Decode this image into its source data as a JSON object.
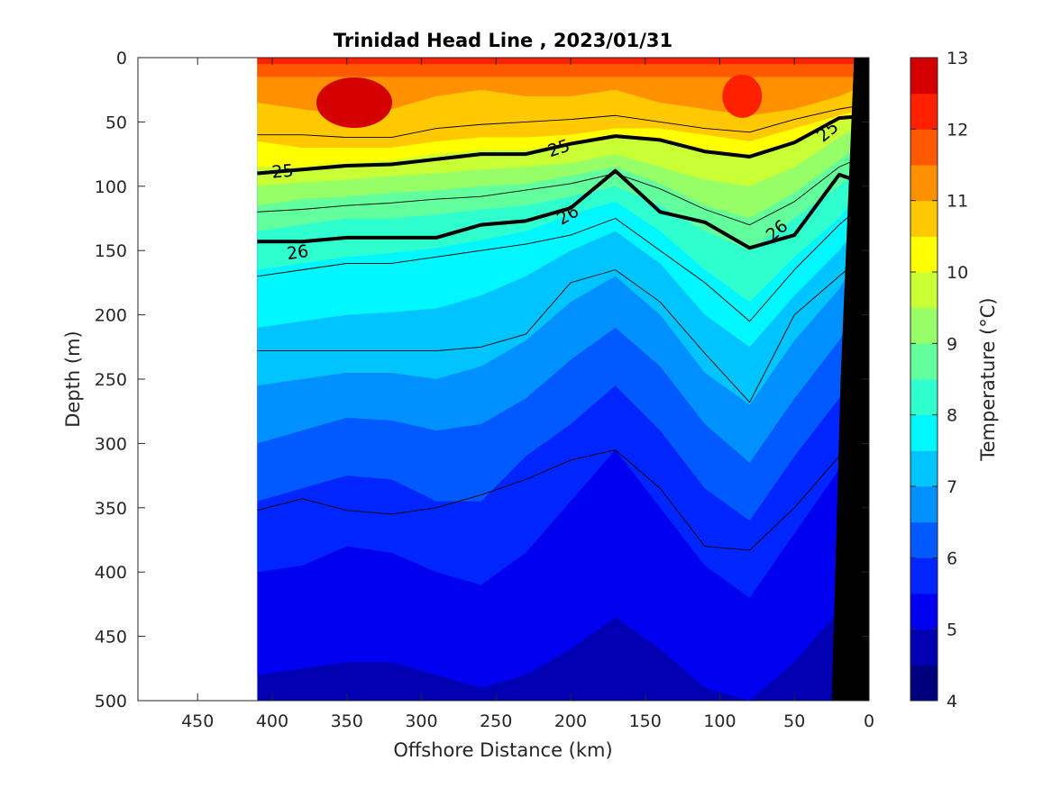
{
  "chart_data": {
    "type": "heatmap",
    "subtype": "filled-contour section",
    "title": "Trinidad Head Line , 2023/01/31",
    "xlabel": "Offshore Distance (km)",
    "ylabel": "Depth (m)",
    "xlim": [
      490,
      0
    ],
    "ylim": [
      500,
      0
    ],
    "x_reversed": true,
    "y_reversed": true,
    "x_ticks": [
      450,
      400,
      350,
      300,
      250,
      200,
      150,
      100,
      50,
      0
    ],
    "y_ticks": [
      0,
      50,
      100,
      150,
      200,
      250,
      300,
      350,
      400,
      450,
      500
    ],
    "data_extent_km": [
      410,
      0
    ],
    "colorbar": {
      "label": "Temperature (°C)",
      "range": [
        4,
        13
      ],
      "ticks": [
        4,
        5,
        6,
        7,
        8,
        9,
        10,
        11,
        12,
        13
      ],
      "levels": [
        4,
        4.5,
        5,
        5.5,
        6,
        6.5,
        7,
        7.5,
        8,
        8.5,
        9,
        9.5,
        10,
        10.5,
        11,
        11.5,
        12,
        12.5,
        13
      ],
      "colors": [
        "#00007f",
        "#0000b2",
        "#0000f0",
        "#0025ff",
        "#005aff",
        "#0090ff",
        "#00c4ff",
        "#00f7ff",
        "#2fffcf",
        "#62ff9c",
        "#96ff68",
        "#c9ff35",
        "#ffff00",
        "#ffc800",
        "#ff9000",
        "#ff5900",
        "#ff2000",
        "#d40000",
        "#9a0000"
      ]
    },
    "isotherm_depths_m": {
      "x_km": [
        410,
        380,
        350,
        320,
        290,
        260,
        230,
        200,
        170,
        140,
        110,
        80,
        50,
        20,
        10
      ],
      "t_12": [
        5,
        5,
        5,
        5,
        5,
        5,
        5,
        5,
        5,
        5,
        5,
        5,
        5,
        5,
        5
      ],
      "t_11_5": [
        15,
        15,
        15,
        15,
        15,
        15,
        15,
        15,
        15,
        15,
        15,
        15,
        15,
        15,
        15
      ],
      "t_11": [
        35,
        40,
        45,
        40,
        30,
        25,
        30,
        30,
        25,
        35,
        40,
        45,
        40,
        30,
        25
      ],
      "t_10_5": [
        65,
        70,
        70,
        70,
        65,
        62,
        62,
        60,
        55,
        55,
        60,
        65,
        55,
        45,
        42
      ],
      "t_10": [
        85,
        85,
        82,
        80,
        75,
        72,
        72,
        66,
        62,
        65,
        72,
        75,
        65,
        50,
        45
      ],
      "t_9_5": [
        100,
        97,
        95,
        92,
        90,
        87,
        85,
        82,
        75,
        85,
        95,
        100,
        85,
        62,
        55
      ],
      "t_9": [
        115,
        110,
        108,
        105,
        103,
        100,
        98,
        92,
        85,
        98,
        115,
        125,
        105,
        80,
        70
      ],
      "t_8_5": [
        135,
        130,
        125,
        125,
        122,
        118,
        115,
        108,
        100,
        115,
        135,
        150,
        125,
        100,
        90
      ],
      "t_8": [
        165,
        160,
        155,
        152,
        148,
        142,
        135,
        122,
        112,
        135,
        165,
        190,
        155,
        125,
        110
      ],
      "t_7_5": [
        210,
        205,
        200,
        198,
        195,
        185,
        170,
        150,
        135,
        160,
        200,
        225,
        185,
        150,
        135
      ],
      "t_7": [
        255,
        250,
        245,
        245,
        250,
        240,
        220,
        190,
        170,
        200,
        245,
        270,
        220,
        180,
        160
      ],
      "t_6_5": [
        300,
        290,
        280,
        282,
        290,
        285,
        265,
        235,
        210,
        240,
        285,
        315,
        265,
        220,
        200
      ],
      "t_6": [
        345,
        335,
        325,
        328,
        345,
        345,
        310,
        285,
        255,
        290,
        335,
        360,
        310,
        265,
        245
      ],
      "t_5_5": [
        400,
        395,
        380,
        385,
        400,
        410,
        385,
        345,
        305,
        350,
        395,
        420,
        370,
        320,
        300
      ],
      "t_5": [
        480,
        475,
        470,
        470,
        480,
        490,
        480,
        460,
        435,
        460,
        490,
        500,
        470,
        430,
        410
      ]
    },
    "density_contours": {
      "x_km": [
        410,
        380,
        350,
        320,
        290,
        260,
        230,
        200,
        170,
        140,
        110,
        80,
        50,
        20,
        10
      ],
      "sigma_25": [
        90,
        87,
        84,
        83,
        79,
        75,
        75,
        67,
        61,
        64,
        73,
        77,
        66,
        47,
        46
      ],
      "sigma_26": [
        143,
        143,
        140,
        140,
        140,
        130,
        127,
        117,
        88,
        120,
        128,
        148,
        138,
        91,
        95
      ],
      "thin_contours_m": [
        [
          60,
          60,
          62,
          62,
          55,
          52,
          50,
          48,
          45,
          50,
          55,
          58,
          48,
          40,
          38
        ],
        [
          120,
          118,
          115,
          113,
          110,
          108,
          103,
          98,
          90,
          102,
          118,
          130,
          112,
          85,
          80
        ],
        [
          170,
          165,
          160,
          160,
          155,
          150,
          145,
          138,
          125,
          150,
          175,
          205,
          165,
          130,
          120
        ],
        [
          228,
          228,
          228,
          228,
          228,
          225,
          215,
          175,
          165,
          190,
          230,
          268,
          200,
          170,
          160
        ],
        [
          352,
          343,
          352,
          355,
          350,
          340,
          328,
          313,
          305,
          335,
          380,
          383,
          350,
          310,
          300
        ]
      ],
      "labels": [
        "25",
        "25",
        "25",
        "26",
        "26",
        "26"
      ]
    },
    "land_mask": "black sloping coastline from ~10 km at surface to ~25 km at 500 m"
  }
}
